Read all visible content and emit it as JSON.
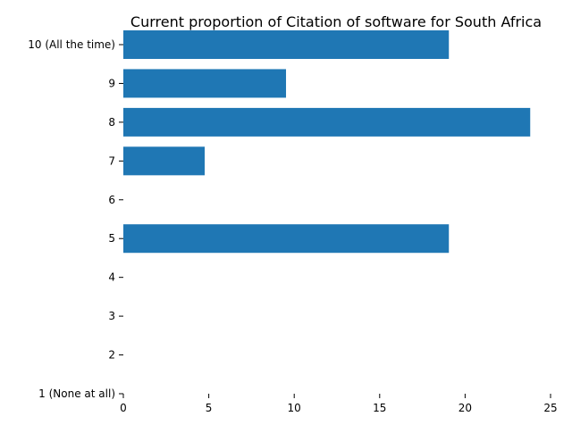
{
  "chart_data": {
    "type": "bar",
    "orientation": "horizontal",
    "title": "Current proportion of Citation of software for South Africa",
    "xlabel": "",
    "ylabel": "",
    "categories": [
      "1 (None at all)",
      "2",
      "3",
      "4",
      "5",
      "6",
      "7",
      "8",
      "9",
      "10 (All the time)"
    ],
    "values": [
      0,
      0,
      0,
      0,
      19.05,
      0,
      4.76,
      23.81,
      9.52,
      19.05
    ],
    "xlim": [
      0,
      25
    ],
    "xticks": [
      0,
      5,
      10,
      15,
      20,
      25
    ],
    "bar_color": "#1f77b4",
    "grid": false,
    "legend": false
  }
}
